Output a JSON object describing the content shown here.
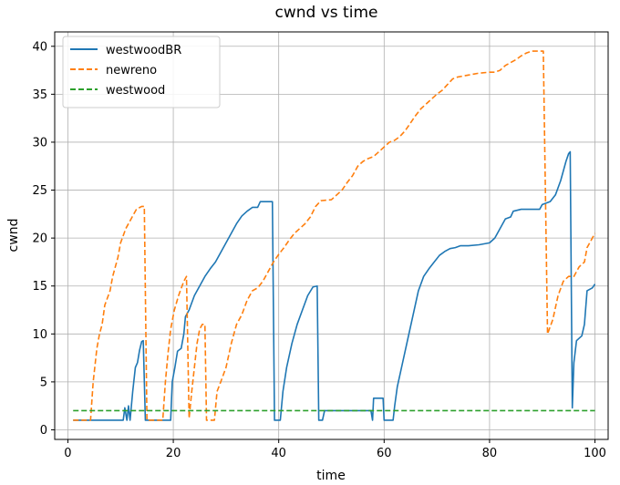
{
  "chart_data": {
    "type": "line",
    "title": "cwnd vs time",
    "xlabel": "time",
    "ylabel": "cwnd",
    "xlim": [
      -2.5,
      102.5
    ],
    "ylim": [
      -1.0,
      41.5
    ],
    "xticks": [
      0,
      20,
      40,
      60,
      80,
      100
    ],
    "yticks": [
      0,
      5,
      10,
      15,
      20,
      25,
      30,
      35,
      40
    ],
    "grid": true,
    "legend": "top-left",
    "series": [
      {
        "name": "westwoodBR",
        "color": "#1f77b4",
        "style": "solid",
        "points": [
          [
            1,
            1
          ],
          [
            10.5,
            1
          ],
          [
            10.8,
            2.3
          ],
          [
            11.2,
            1
          ],
          [
            11.5,
            2.5
          ],
          [
            11.8,
            1
          ],
          [
            12.3,
            4
          ],
          [
            12.8,
            6.5
          ],
          [
            13.2,
            7
          ],
          [
            13.6,
            8.3
          ],
          [
            14,
            9.2
          ],
          [
            14.3,
            9.3
          ],
          [
            14.7,
            1
          ],
          [
            19.5,
            1
          ],
          [
            19.8,
            5
          ],
          [
            20.3,
            6.5
          ],
          [
            20.8,
            8.2
          ],
          [
            21.5,
            8.5
          ],
          [
            22,
            10
          ],
          [
            22.3,
            11.8
          ],
          [
            23,
            12.5
          ],
          [
            24,
            14
          ],
          [
            25,
            15
          ],
          [
            26,
            16
          ],
          [
            27,
            16.8
          ],
          [
            28,
            17.5
          ],
          [
            29,
            18.5
          ],
          [
            30,
            19.5
          ],
          [
            31,
            20.5
          ],
          [
            32,
            21.5
          ],
          [
            33,
            22.3
          ],
          [
            34,
            22.8
          ],
          [
            35,
            23.2
          ],
          [
            36,
            23.2
          ],
          [
            36.5,
            23.8
          ],
          [
            38,
            23.8
          ],
          [
            38.8,
            23.8
          ],
          [
            39.2,
            1
          ],
          [
            40.3,
            1
          ],
          [
            40.8,
            4
          ],
          [
            41.5,
            6.5
          ],
          [
            42.5,
            9
          ],
          [
            43.5,
            11
          ],
          [
            44.5,
            12.5
          ],
          [
            45.5,
            14
          ],
          [
            46.5,
            14.9
          ],
          [
            47.3,
            15
          ],
          [
            47.6,
            1
          ],
          [
            48.3,
            1
          ],
          [
            48.7,
            2
          ],
          [
            50,
            2
          ],
          [
            57.5,
            2
          ],
          [
            57.8,
            1
          ],
          [
            58,
            3.3
          ],
          [
            59.8,
            3.3
          ],
          [
            60,
            1
          ],
          [
            61.7,
            1
          ],
          [
            62,
            2.5
          ],
          [
            62.5,
            4.5
          ],
          [
            63.5,
            7
          ],
          [
            64.5,
            9.5
          ],
          [
            65.5,
            12
          ],
          [
            66.5,
            14.5
          ],
          [
            67.5,
            16
          ],
          [
            68.5,
            16.8
          ],
          [
            69.5,
            17.5
          ],
          [
            70.5,
            18.2
          ],
          [
            71.5,
            18.6
          ],
          [
            72.5,
            18.9
          ],
          [
            73.5,
            19
          ],
          [
            74.5,
            19.2
          ],
          [
            76,
            19.2
          ],
          [
            78,
            19.3
          ],
          [
            80,
            19.5
          ],
          [
            81,
            20
          ],
          [
            82,
            21
          ],
          [
            83,
            22
          ],
          [
            84,
            22.2
          ],
          [
            84.5,
            22.8
          ],
          [
            86,
            23
          ],
          [
            88,
            23
          ],
          [
            89.5,
            23
          ],
          [
            90,
            23.5
          ],
          [
            91.5,
            23.8
          ],
          [
            92.5,
            24.5
          ],
          [
            93.5,
            26
          ],
          [
            94.5,
            28
          ],
          [
            95,
            28.8
          ],
          [
            95.3,
            29
          ],
          [
            95.7,
            2.3
          ],
          [
            96,
            7
          ],
          [
            96.5,
            9.3
          ],
          [
            97.5,
            9.8
          ],
          [
            98,
            11
          ],
          [
            98.5,
            14.5
          ],
          [
            99.5,
            14.8
          ],
          [
            100,
            15.2
          ]
        ]
      },
      {
        "name": "newreno",
        "color": "#ff7f0e",
        "style": "dashed",
        "points": [
          [
            1,
            1
          ],
          [
            4.3,
            1
          ],
          [
            4.8,
            5
          ],
          [
            5.5,
            8.5
          ],
          [
            6,
            10
          ],
          [
            6.5,
            11
          ],
          [
            7,
            13
          ],
          [
            8,
            14.5
          ],
          [
            8.5,
            16
          ],
          [
            9,
            17
          ],
          [
            9.5,
            18
          ],
          [
            10,
            19.5
          ],
          [
            11,
            21
          ],
          [
            12,
            22
          ],
          [
            13,
            23
          ],
          [
            14,
            23.3
          ],
          [
            14.5,
            23.3
          ],
          [
            15,
            1
          ],
          [
            18,
            1
          ],
          [
            18.5,
            5
          ],
          [
            19,
            8
          ],
          [
            19.5,
            10.5
          ],
          [
            20.2,
            12.5
          ],
          [
            21,
            14
          ],
          [
            22,
            15.5
          ],
          [
            22.5,
            16
          ],
          [
            23,
            1.2
          ],
          [
            23.5,
            4
          ],
          [
            24,
            6.5
          ],
          [
            24.5,
            9
          ],
          [
            25,
            10.5
          ],
          [
            25.5,
            11
          ],
          [
            26,
            11
          ],
          [
            26.3,
            1
          ],
          [
            27.8,
            1
          ],
          [
            28.3,
            4
          ],
          [
            29,
            5
          ],
          [
            30,
            6.5
          ],
          [
            31,
            9
          ],
          [
            32,
            11
          ],
          [
            33,
            12
          ],
          [
            34,
            13.5
          ],
          [
            35,
            14.5
          ],
          [
            36,
            14.8
          ],
          [
            37,
            15.5
          ],
          [
            38,
            16.5
          ],
          [
            39,
            17.5
          ],
          [
            40,
            18.3
          ],
          [
            41,
            19
          ],
          [
            42,
            19.8
          ],
          [
            43,
            20.5
          ],
          [
            44,
            21
          ],
          [
            45,
            21.5
          ],
          [
            46,
            22.2
          ],
          [
            47,
            23.3
          ],
          [
            48,
            23.9
          ],
          [
            50,
            24
          ],
          [
            51,
            24.5
          ],
          [
            52,
            25
          ],
          [
            53,
            25.8
          ],
          [
            54,
            26.5
          ],
          [
            55,
            27.5
          ],
          [
            56,
            28
          ],
          [
            57,
            28.3
          ],
          [
            58,
            28.5
          ],
          [
            59,
            29
          ],
          [
            60,
            29.5
          ],
          [
            61,
            30
          ],
          [
            62,
            30.2
          ],
          [
            63,
            30.6
          ],
          [
            64,
            31.2
          ],
          [
            65,
            32
          ],
          [
            66,
            32.8
          ],
          [
            67,
            33.5
          ],
          [
            68,
            34
          ],
          [
            69,
            34.5
          ],
          [
            70,
            35
          ],
          [
            71,
            35.4
          ],
          [
            72,
            36
          ],
          [
            73,
            36.6
          ],
          [
            74,
            36.8
          ],
          [
            76,
            37
          ],
          [
            78,
            37.2
          ],
          [
            80,
            37.3
          ],
          [
            81,
            37.3
          ],
          [
            82,
            37.5
          ],
          [
            83,
            38
          ],
          [
            84,
            38.3
          ],
          [
            85,
            38.6
          ],
          [
            86,
            39
          ],
          [
            87,
            39.3
          ],
          [
            88,
            39.5
          ],
          [
            89,
            39.5
          ],
          [
            90,
            39.5
          ],
          [
            90.2,
            39.5
          ],
          [
            91,
            10
          ],
          [
            92,
            11.5
          ],
          [
            93,
            14
          ],
          [
            94,
            15.5
          ],
          [
            95,
            16
          ],
          [
            96,
            16
          ],
          [
            97,
            17
          ],
          [
            98,
            17.5
          ],
          [
            98.5,
            19
          ],
          [
            99.5,
            20
          ],
          [
            100,
            20.5
          ]
        ]
      },
      {
        "name": "westwood",
        "color": "#2ca02c",
        "style": "dashed",
        "points": [
          [
            1,
            2
          ],
          [
            100,
            2
          ]
        ]
      }
    ]
  }
}
